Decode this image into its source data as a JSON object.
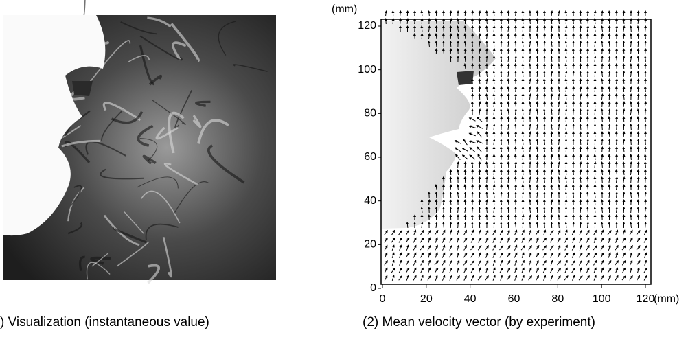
{
  "panels": [
    {
      "caption": ") Visualization (instantaneous value)"
    },
    {
      "caption": "(2) Mean velocity vector (by experiment)",
      "x_unit": "(mm)",
      "y_unit": "(mm)",
      "xticks": [
        "0",
        "20",
        "40",
        "60",
        "80",
        "100",
        "120"
      ],
      "yticks": [
        "0",
        "20",
        "40",
        "60",
        "80",
        "100",
        "120"
      ]
    }
  ]
}
